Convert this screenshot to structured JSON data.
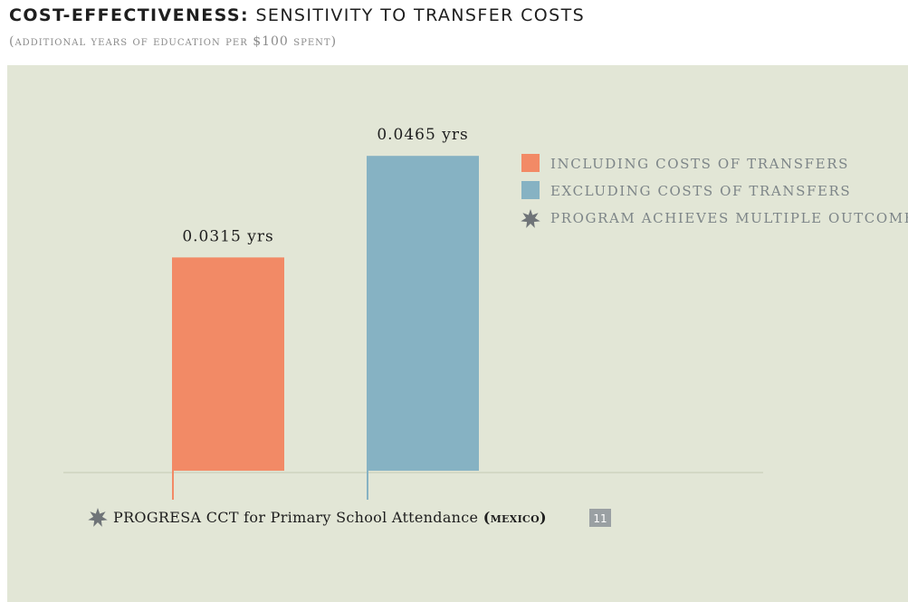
{
  "header": {
    "title_bold": "COST-EFFECTIVENESS:",
    "title_rest": "SENSITIVITY TO TRANSFER COSTS",
    "subtitle": "(additional years of education per $100 spent)"
  },
  "colors": {
    "panel_bg": "#e2e6d6",
    "including": "#f28a66",
    "excluding": "#86b2c3",
    "star": "#6f7478",
    "badge": "#9aa0a3"
  },
  "icons": {
    "star": "star-icon"
  },
  "chart_data": {
    "type": "bar",
    "categories": [
      "PROGRESA CCT for Primary School Attendance (mexico)"
    ],
    "series": [
      {
        "name": "including costs of transfers",
        "values": [
          0.0315
        ],
        "label": "0.0315 yrs"
      },
      {
        "name": "excluding costs of transfers",
        "values": [
          0.0465
        ],
        "label": "0.0465 yrs"
      }
    ],
    "legend": {
      "placement": "top-right",
      "entries": [
        {
          "label": "INCLUDING COSTS OF TRANSFERS",
          "marker": "swatch",
          "color": "#f28a66"
        },
        {
          "label": "EXCLUDING COSTS OF TRANSFERS",
          "marker": "swatch",
          "color": "#86b2c3"
        },
        {
          "label": "PROGRAM ACHIEVES MULTIPLE OUTCOMES",
          "marker": "star",
          "color": "#6f7478"
        }
      ]
    },
    "category_caption": {
      "program": "PROGRESA CCT for Primary School Attendance",
      "country": "(mexico)",
      "badge": "11",
      "multiple_outcomes": true
    },
    "ylim": [
      0,
      0.05
    ],
    "grid": false,
    "xlabel": "",
    "ylabel": ""
  }
}
